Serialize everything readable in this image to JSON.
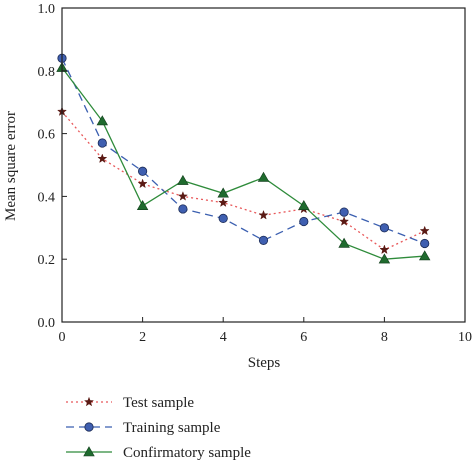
{
  "chart_data": {
    "type": "line",
    "title": "",
    "xlabel": "Steps",
    "ylabel": "Mean square error",
    "xlim": [
      0,
      10
    ],
    "ylim": [
      0.0,
      1.0
    ],
    "x_ticks": [
      "0",
      "2",
      "4",
      "6",
      "8",
      "10"
    ],
    "x_tick_values": [
      0,
      2,
      4,
      6,
      8,
      10
    ],
    "y_ticks": [
      "0.0",
      "0.2",
      "0.4",
      "0.6",
      "0.8",
      "1.0"
    ],
    "y_tick_values": [
      0.0,
      0.2,
      0.4,
      0.6,
      0.8,
      1.0
    ],
    "grid": false,
    "legend_position": "bottom-left, below plot",
    "x": [
      0,
      1,
      2,
      3,
      4,
      5,
      6,
      7,
      8,
      9
    ],
    "series": [
      {
        "name": "Test sample",
        "values": [
          0.67,
          0.52,
          0.44,
          0.4,
          0.38,
          0.34,
          0.36,
          0.32,
          0.23,
          0.29
        ],
        "color": "#e8585a",
        "marker_color": "#5a1a14",
        "marker": "star",
        "line_style": "dotted"
      },
      {
        "name": "Training sample",
        "values": [
          0.84,
          0.57,
          0.48,
          0.36,
          0.33,
          0.26,
          0.32,
          0.35,
          0.3,
          0.25
        ],
        "color": "#3b5fb0",
        "marker_color": "#3f5fb0",
        "marker": "circle",
        "line_style": "dashed"
      },
      {
        "name": "Confirmatory sample",
        "values": [
          0.81,
          0.64,
          0.37,
          0.45,
          0.41,
          0.46,
          0.37,
          0.25,
          0.2,
          0.21
        ],
        "color": "#2e8b3a",
        "marker_color": "#1f6b2e",
        "marker": "triangle",
        "line_style": "solid"
      }
    ]
  }
}
